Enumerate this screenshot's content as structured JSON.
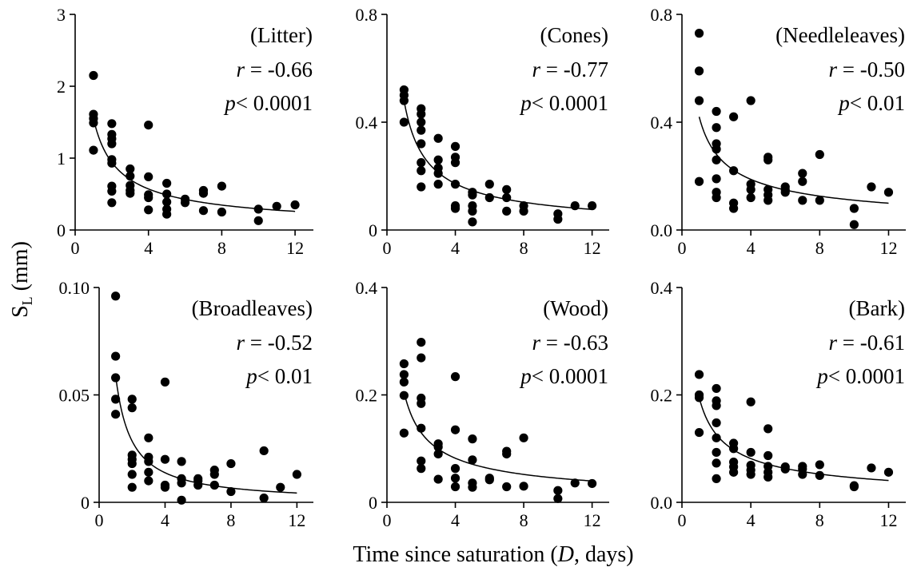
{
  "figure": {
    "ylabel_main": "S",
    "ylabel_sub": "L",
    "ylabel_unit": " (mm)",
    "xlabel_pre": "Time since saturation (",
    "xlabel_italic": "D",
    "xlabel_post": ", days)"
  },
  "chart_data": [
    {
      "type": "scatter",
      "name": "(Litter)",
      "r_label": "r",
      "r_value": " = -0.66",
      "p_label": "p",
      "p_value": "< 0.0001",
      "xlim": [
        0,
        13
      ],
      "ylim": [
        0,
        3
      ],
      "xticks": [
        0,
        4,
        8,
        12
      ],
      "xtick_labels": [
        "0",
        "4",
        "8",
        "12"
      ],
      "yticks": [
        0,
        1,
        2,
        3
      ],
      "ytick_labels": [
        "0",
        "1",
        "2",
        "3"
      ],
      "fit": {
        "a": 1.55,
        "b": -0.72
      },
      "points": [
        [
          1,
          2.15
        ],
        [
          1,
          1.61
        ],
        [
          1,
          1.55
        ],
        [
          1,
          1.49
        ],
        [
          1,
          1.11
        ],
        [
          2,
          1.48
        ],
        [
          2,
          1.33
        ],
        [
          2,
          1.27
        ],
        [
          2,
          1.2
        ],
        [
          2,
          0.98
        ],
        [
          2,
          0.93
        ],
        [
          2,
          0.61
        ],
        [
          2,
          0.54
        ],
        [
          2,
          0.38
        ],
        [
          3,
          0.85
        ],
        [
          3,
          0.75
        ],
        [
          3,
          0.62
        ],
        [
          3,
          0.55
        ],
        [
          3,
          0.51
        ],
        [
          4,
          1.46
        ],
        [
          4,
          0.74
        ],
        [
          4,
          0.49
        ],
        [
          4,
          0.45
        ],
        [
          4,
          0.28
        ],
        [
          5,
          0.65
        ],
        [
          5,
          0.5
        ],
        [
          5,
          0.39
        ],
        [
          5,
          0.29
        ],
        [
          5,
          0.22
        ],
        [
          6,
          0.43
        ],
        [
          6,
          0.38
        ],
        [
          7,
          0.55
        ],
        [
          7,
          0.51
        ],
        [
          7,
          0.27
        ],
        [
          8,
          0.61
        ],
        [
          8,
          0.25
        ],
        [
          10,
          0.29
        ],
        [
          10,
          0.13
        ],
        [
          11,
          0.33
        ],
        [
          12,
          0.35
        ]
      ]
    },
    {
      "type": "scatter",
      "name": "(Cones)",
      "r_label": "r",
      "r_value": " = -0.77",
      "p_label": "p",
      "p_value": "< 0.0001",
      "xlim": [
        0,
        13
      ],
      "ylim": [
        0,
        0.8
      ],
      "xticks": [
        0,
        4,
        8,
        12
      ],
      "xtick_labels": [
        "0",
        "4",
        "8",
        "12"
      ],
      "yticks": [
        0,
        0.4,
        0.8
      ],
      "ytick_labels": [
        "0",
        "0.4",
        "0.8"
      ],
      "fit": {
        "a": 0.48,
        "b": -0.74
      },
      "points": [
        [
          1,
          0.52
        ],
        [
          1,
          0.5
        ],
        [
          1,
          0.48
        ],
        [
          1,
          0.4
        ],
        [
          2,
          0.45
        ],
        [
          2,
          0.43
        ],
        [
          2,
          0.4
        ],
        [
          2,
          0.37
        ],
        [
          2,
          0.32
        ],
        [
          2,
          0.25
        ],
        [
          2,
          0.22
        ],
        [
          2,
          0.16
        ],
        [
          3,
          0.34
        ],
        [
          3,
          0.26
        ],
        [
          3,
          0.23
        ],
        [
          3,
          0.21
        ],
        [
          3,
          0.17
        ],
        [
          4,
          0.31
        ],
        [
          4,
          0.27
        ],
        [
          4,
          0.25
        ],
        [
          4,
          0.17
        ],
        [
          4,
          0.09
        ],
        [
          4,
          0.08
        ],
        [
          5,
          0.14
        ],
        [
          5,
          0.13
        ],
        [
          5,
          0.09
        ],
        [
          5,
          0.07
        ],
        [
          5,
          0.03
        ],
        [
          6,
          0.17
        ],
        [
          6,
          0.12
        ],
        [
          7,
          0.15
        ],
        [
          7,
          0.12
        ],
        [
          7,
          0.07
        ],
        [
          8,
          0.09
        ],
        [
          8,
          0.07
        ],
        [
          10,
          0.06
        ],
        [
          10,
          0.04
        ],
        [
          11,
          0.09
        ],
        [
          12,
          0.09
        ]
      ]
    },
    {
      "type": "scatter",
      "name": "(Needleleaves)",
      "r_label": "r",
      "r_value": " = -0.50",
      "p_label": "p",
      "p_value": "< 0.01",
      "xlim": [
        0,
        13
      ],
      "ylim": [
        0,
        0.8
      ],
      "xticks": [
        0,
        4,
        8,
        12
      ],
      "xtick_labels": [
        "0",
        "4",
        "8",
        "12"
      ],
      "yticks": [
        0,
        0.4,
        0.8
      ],
      "ytick_labels": [
        "0.0",
        "0.4",
        "0.8"
      ],
      "fit": {
        "a": 0.42,
        "b": -0.58
      },
      "points": [
        [
          1,
          0.73
        ],
        [
          1,
          0.59
        ],
        [
          1,
          0.48
        ],
        [
          1,
          0.18
        ],
        [
          2,
          0.44
        ],
        [
          2,
          0.38
        ],
        [
          2,
          0.32
        ],
        [
          2,
          0.3
        ],
        [
          2,
          0.26
        ],
        [
          2,
          0.19
        ],
        [
          2,
          0.14
        ],
        [
          2,
          0.12
        ],
        [
          3,
          0.42
        ],
        [
          3,
          0.22
        ],
        [
          3,
          0.1
        ],
        [
          3,
          0.08
        ],
        [
          4,
          0.48
        ],
        [
          4,
          0.17
        ],
        [
          4,
          0.15
        ],
        [
          4,
          0.12
        ],
        [
          5,
          0.27
        ],
        [
          5,
          0.26
        ],
        [
          5,
          0.15
        ],
        [
          5,
          0.13
        ],
        [
          5,
          0.11
        ],
        [
          6,
          0.16
        ],
        [
          6,
          0.15
        ],
        [
          6,
          0.14
        ],
        [
          7,
          0.21
        ],
        [
          7,
          0.18
        ],
        [
          7,
          0.11
        ],
        [
          8,
          0.28
        ],
        [
          8,
          0.11
        ],
        [
          10,
          0.08
        ],
        [
          10,
          0.02
        ],
        [
          11,
          0.16
        ],
        [
          12,
          0.14
        ]
      ]
    },
    {
      "type": "scatter",
      "name": "(Broadleaves)",
      "r_label": "r",
      "r_value": " = -0.52",
      "p_label": "p",
      "p_value": "< 0.01",
      "xlim": [
        0,
        13
      ],
      "ylim": [
        0,
        0.1
      ],
      "xticks": [
        0,
        4,
        8,
        12
      ],
      "xtick_labels": [
        "0",
        "4",
        "8",
        "12"
      ],
      "yticks": [
        0,
        0.05,
        0.1
      ],
      "ytick_labels": [
        "0",
        "0.05",
        "0.10"
      ],
      "fit": {
        "a": 0.059,
        "b": -1.05
      },
      "points": [
        [
          1,
          0.096
        ],
        [
          1,
          0.068
        ],
        [
          1,
          0.058
        ],
        [
          1,
          0.048
        ],
        [
          1,
          0.041
        ],
        [
          2,
          0.048
        ],
        [
          2,
          0.044
        ],
        [
          2,
          0.022
        ],
        [
          2,
          0.02
        ],
        [
          2,
          0.018
        ],
        [
          2,
          0.013
        ],
        [
          2,
          0.007
        ],
        [
          3,
          0.03
        ],
        [
          3,
          0.021
        ],
        [
          3,
          0.019
        ],
        [
          3,
          0.014
        ],
        [
          3,
          0.01
        ],
        [
          4,
          0.056
        ],
        [
          4,
          0.02
        ],
        [
          4,
          0.008
        ],
        [
          4,
          0.007
        ],
        [
          5,
          0.019
        ],
        [
          5,
          0.011
        ],
        [
          5,
          0.009
        ],
        [
          5,
          0.001
        ],
        [
          6,
          0.011
        ],
        [
          6,
          0.01
        ],
        [
          6,
          0.008
        ],
        [
          7,
          0.015
        ],
        [
          7,
          0.013
        ],
        [
          7,
          0.008
        ],
        [
          8,
          0.018
        ],
        [
          8,
          0.005
        ],
        [
          10,
          0.024
        ],
        [
          10,
          0.002
        ],
        [
          11,
          0.007
        ],
        [
          12,
          0.013
        ]
      ]
    },
    {
      "type": "scatter",
      "name": "(Wood)",
      "r_label": "r",
      "r_value": " = -0.63",
      "p_label": "p",
      "p_value": "< 0.0001",
      "xlim": [
        0,
        13
      ],
      "ylim": [
        0,
        0.4
      ],
      "xticks": [
        0,
        4,
        8,
        12
      ],
      "xtick_labels": [
        "0",
        "4",
        "8",
        "12"
      ],
      "yticks": [
        0,
        0.2,
        0.4
      ],
      "ytick_labels": [
        "0",
        "0.2",
        "0.4"
      ],
      "fit": {
        "a": 0.205,
        "b": -0.66
      },
      "points": [
        [
          1,
          0.258
        ],
        [
          1,
          0.238
        ],
        [
          1,
          0.224
        ],
        [
          1,
          0.199
        ],
        [
          1,
          0.129
        ],
        [
          2,
          0.298
        ],
        [
          2,
          0.269
        ],
        [
          2,
          0.194
        ],
        [
          2,
          0.184
        ],
        [
          2,
          0.138
        ],
        [
          2,
          0.077
        ],
        [
          2,
          0.063
        ],
        [
          3,
          0.109
        ],
        [
          3,
          0.103
        ],
        [
          3,
          0.09
        ],
        [
          3,
          0.043
        ],
        [
          4,
          0.234
        ],
        [
          4,
          0.135
        ],
        [
          4,
          0.063
        ],
        [
          4,
          0.045
        ],
        [
          4,
          0.029
        ],
        [
          5,
          0.118
        ],
        [
          5,
          0.079
        ],
        [
          5,
          0.036
        ],
        [
          5,
          0.028
        ],
        [
          6,
          0.045
        ],
        [
          6,
          0.042
        ],
        [
          7,
          0.095
        ],
        [
          7,
          0.09
        ],
        [
          7,
          0.029
        ],
        [
          8,
          0.12
        ],
        [
          8,
          0.03
        ],
        [
          10,
          0.022
        ],
        [
          10,
          0.007
        ],
        [
          11,
          0.036
        ],
        [
          12,
          0.035
        ]
      ]
    },
    {
      "type": "scatter",
      "name": "(Bark)",
      "r_label": "r",
      "r_value": " = -0.61",
      "p_label": "p",
      "p_value": "< 0.0001",
      "xlim": [
        0,
        13
      ],
      "ylim": [
        0,
        0.4
      ],
      "xticks": [
        0,
        4,
        8,
        12
      ],
      "xtick_labels": [
        "0",
        "4",
        "8",
        "12"
      ],
      "yticks": [
        0,
        0.2,
        0.4
      ],
      "ytick_labels": [
        "0.0",
        "0.2",
        "0.4"
      ],
      "fit": {
        "a": 0.195,
        "b": -0.63
      },
      "points": [
        [
          1,
          0.238
        ],
        [
          1,
          0.2
        ],
        [
          1,
          0.195
        ],
        [
          1,
          0.13
        ],
        [
          2,
          0.212
        ],
        [
          2,
          0.189
        ],
        [
          2,
          0.18
        ],
        [
          2,
          0.148
        ],
        [
          2,
          0.12
        ],
        [
          2,
          0.093
        ],
        [
          2,
          0.073
        ],
        [
          2,
          0.044
        ],
        [
          3,
          0.11
        ],
        [
          3,
          0.1
        ],
        [
          3,
          0.075
        ],
        [
          3,
          0.066
        ],
        [
          3,
          0.056
        ],
        [
          4,
          0.187
        ],
        [
          4,
          0.093
        ],
        [
          4,
          0.069
        ],
        [
          4,
          0.06
        ],
        [
          4,
          0.052
        ],
        [
          5,
          0.137
        ],
        [
          5,
          0.087
        ],
        [
          5,
          0.067
        ],
        [
          5,
          0.056
        ],
        [
          5,
          0.047
        ],
        [
          6,
          0.066
        ],
        [
          6,
          0.062
        ],
        [
          7,
          0.067
        ],
        [
          7,
          0.062
        ],
        [
          7,
          0.052
        ],
        [
          8,
          0.07
        ],
        [
          8,
          0.05
        ],
        [
          10,
          0.031
        ],
        [
          10,
          0.029
        ],
        [
          11,
          0.064
        ],
        [
          12,
          0.056
        ]
      ]
    }
  ]
}
